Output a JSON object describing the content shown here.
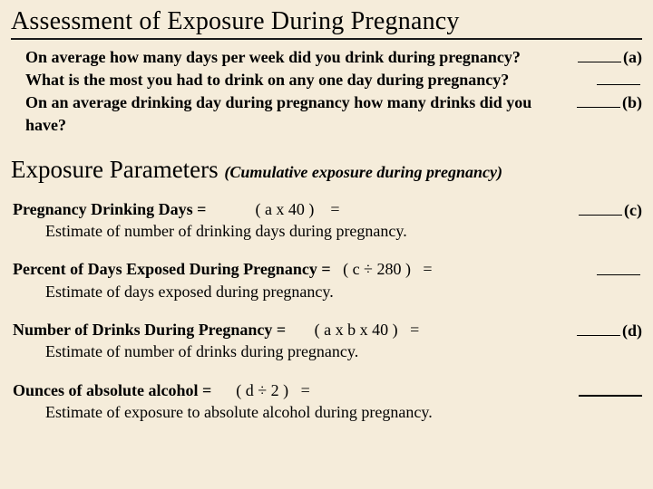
{
  "title1": "Assessment of Exposure During Pregnancy",
  "questions": [
    {
      "text": "On average how many days per week did you drink during pregnancy?",
      "tag": "(a)"
    },
    {
      "text": "What is the most you had to drink on any one day during pregnancy?",
      "tag": ""
    },
    {
      "text": "On an average drinking day during pregnancy how many drinks did you have?",
      "tag": "(b)"
    }
  ],
  "title2_main": "Exposure Parameters ",
  "title2_sub": "(Cumulative exposure during pregnancy)",
  "params": [
    {
      "lead": "Pregnancy Drinking Days =",
      "formula": "            ( a x 40 )    =",
      "desc": "Estimate of number of drinking days during pregnancy.",
      "tag": "(c)",
      "wide": false
    },
    {
      "lead": "Percent of Days Exposed During Pregnancy    =",
      "formula": "   ( c ÷ 280 )   =",
      "desc": "Estimate of  days exposed during pregnancy.",
      "tag": "",
      "wide": false
    },
    {
      "lead": "Number of Drinks During Pregnancy    =",
      "formula": "       ( a x b x 40 )   =",
      "desc": "Estimate of number of drinks during pregnancy.",
      "tag": "(d)",
      "wide": false
    },
    {
      "lead": "Ounces of absolute alcohol    =",
      "formula": "      ( d ÷ 2 )   =",
      "desc": "Estimate of exposure to absolute alcohol during pregnancy.",
      "tag": "",
      "wide": true
    }
  ]
}
